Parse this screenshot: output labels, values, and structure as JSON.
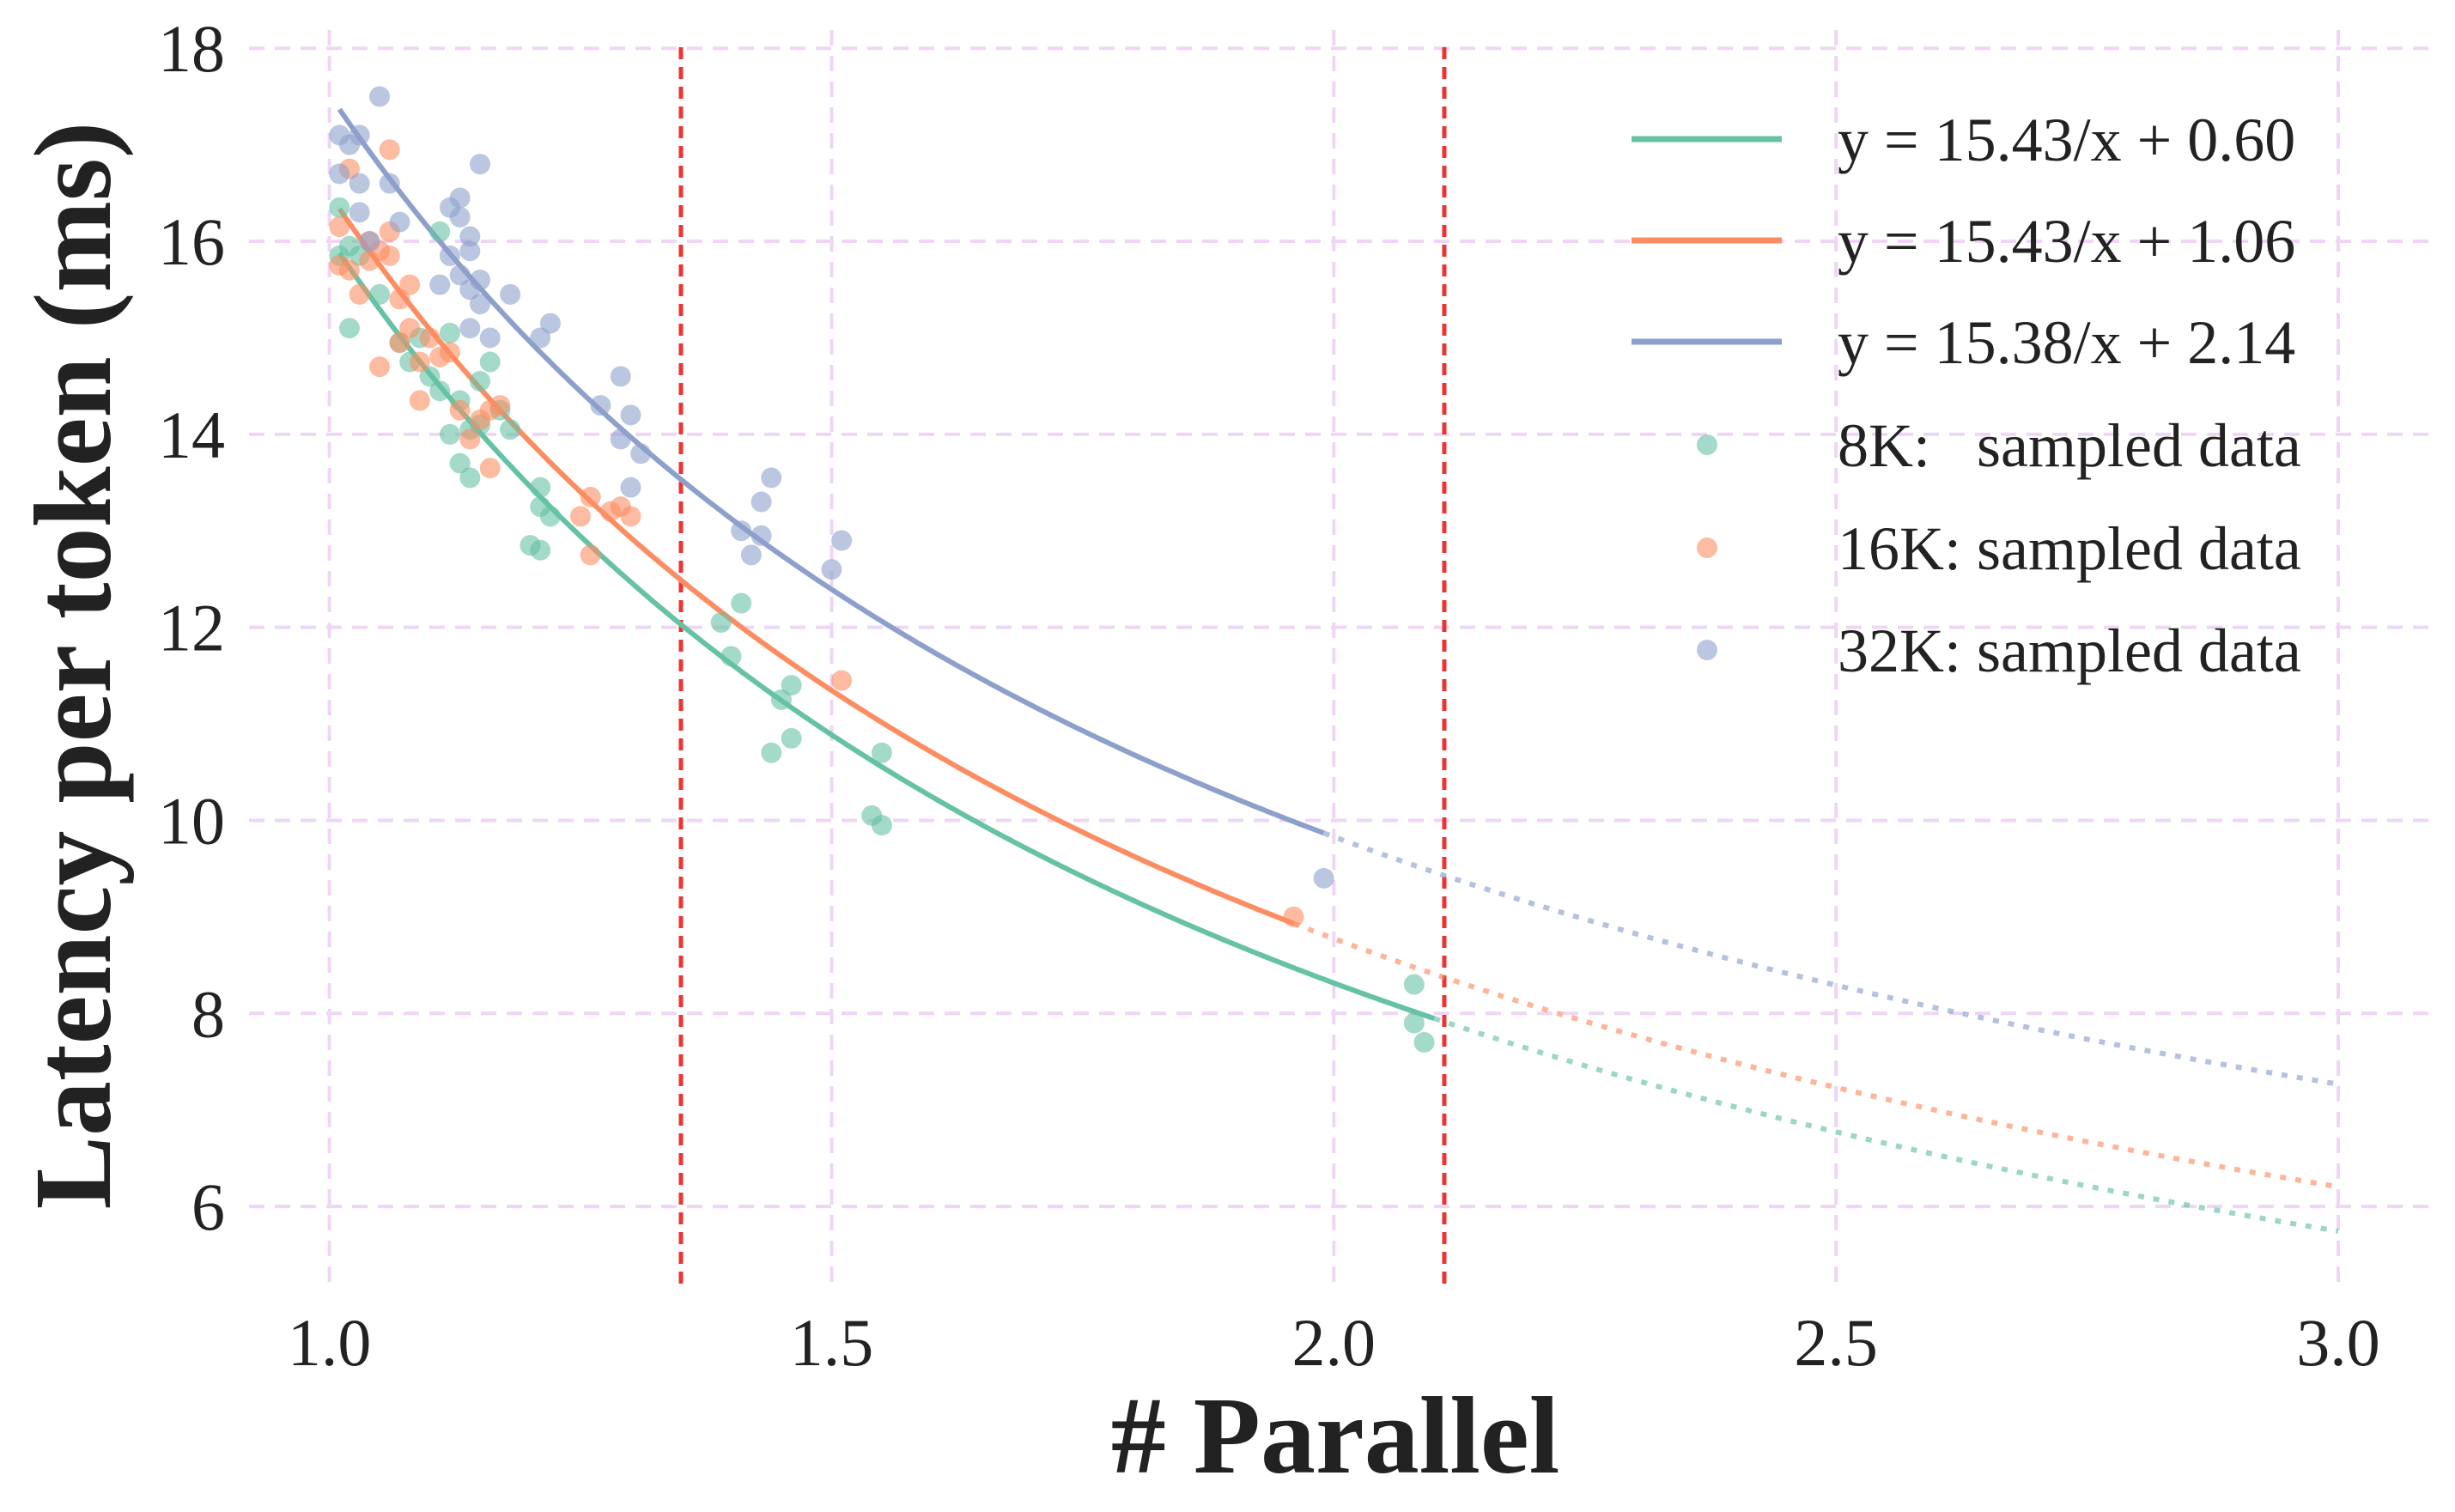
{
  "chart_data": {
    "type": "scatter",
    "xlabel": "# Parallel",
    "ylabel": "Latency per token (ms)",
    "xlim": [
      0.92,
      3.1
    ],
    "ylim": [
      5.2,
      18.1
    ],
    "xticks": [
      1.0,
      1.5,
      2.0,
      2.5,
      3.0
    ],
    "xtick_labels": [
      "1.0",
      "1.5",
      "2.0",
      "2.5",
      "3.0"
    ],
    "yticks": [
      6,
      8,
      10,
      12,
      14,
      16,
      18
    ],
    "ytick_labels": [
      "6",
      "8",
      "10",
      "12",
      "14",
      "16",
      "18"
    ],
    "grid": true,
    "legend_position": "top-right",
    "vlines": {
      "x": [
        1.35,
        2.11
      ],
      "color": "#ee3333"
    },
    "fits": [
      {
        "name": "y = 15.43/x + 0.60",
        "a": 15.43,
        "b": 0.6,
        "solid_range": [
          1.01,
          2.1
        ],
        "dotted_range": [
          2.1,
          3.0
        ],
        "color": "#66c2a5"
      },
      {
        "name": "y = 15.43/x + 1.06",
        "a": 15.43,
        "b": 1.06,
        "solid_range": [
          1.01,
          1.96
        ],
        "dotted_range": [
          1.96,
          3.0
        ],
        "color": "#fc8d62"
      },
      {
        "name": "y = 15.38/x + 2.14",
        "a": 15.38,
        "b": 2.14,
        "solid_range": [
          1.01,
          1.99
        ],
        "dotted_range": [
          1.99,
          3.0
        ],
        "color": "#8da0cb"
      }
    ],
    "series": [
      {
        "name": "8K:   sampled data",
        "color": "#66c2a5",
        "points": [
          [
            1.01,
            16.35
          ],
          [
            1.01,
            15.85
          ],
          [
            1.02,
            15.95
          ],
          [
            1.02,
            15.1
          ],
          [
            1.03,
            15.85
          ],
          [
            1.05,
            15.45
          ],
          [
            1.07,
            14.95
          ],
          [
            1.08,
            14.75
          ],
          [
            1.09,
            15.0
          ],
          [
            1.1,
            14.6
          ],
          [
            1.11,
            16.1
          ],
          [
            1.11,
            14.45
          ],
          [
            1.12,
            14.0
          ],
          [
            1.12,
            15.05
          ],
          [
            1.13,
            14.35
          ],
          [
            1.13,
            13.7
          ],
          [
            1.14,
            14.05
          ],
          [
            1.14,
            13.55
          ],
          [
            1.15,
            14.55
          ],
          [
            1.15,
            14.1
          ],
          [
            1.16,
            14.75
          ],
          [
            1.17,
            14.25
          ],
          [
            1.18,
            14.05
          ],
          [
            1.2,
            12.85
          ],
          [
            1.21,
            13.45
          ],
          [
            1.21,
            13.25
          ],
          [
            1.21,
            12.8
          ],
          [
            1.22,
            13.15
          ],
          [
            1.39,
            12.05
          ],
          [
            1.4,
            11.7
          ],
          [
            1.41,
            12.25
          ],
          [
            1.44,
            10.7
          ],
          [
            1.45,
            11.25
          ],
          [
            1.46,
            11.4
          ],
          [
            1.46,
            10.85
          ],
          [
            1.54,
            10.05
          ],
          [
            1.55,
            9.95
          ],
          [
            1.55,
            10.7
          ],
          [
            2.08,
            8.3
          ],
          [
            2.08,
            7.9
          ],
          [
            2.09,
            7.7
          ]
        ]
      },
      {
        "name": "16K: sampled data",
        "color": "#fc8d62",
        "points": [
          [
            1.01,
            15.75
          ],
          [
            1.01,
            16.15
          ],
          [
            1.02,
            15.7
          ],
          [
            1.02,
            16.75
          ],
          [
            1.03,
            15.45
          ],
          [
            1.04,
            16.0
          ],
          [
            1.04,
            15.8
          ],
          [
            1.05,
            15.9
          ],
          [
            1.05,
            14.7
          ],
          [
            1.06,
            16.1
          ],
          [
            1.06,
            15.85
          ],
          [
            1.06,
            16.95
          ],
          [
            1.07,
            15.4
          ],
          [
            1.07,
            14.95
          ],
          [
            1.08,
            15.1
          ],
          [
            1.08,
            15.55
          ],
          [
            1.09,
            14.75
          ],
          [
            1.09,
            14.35
          ],
          [
            1.1,
            15.0
          ],
          [
            1.11,
            14.8
          ],
          [
            1.12,
            14.85
          ],
          [
            1.13,
            14.25
          ],
          [
            1.14,
            13.95
          ],
          [
            1.15,
            14.15
          ],
          [
            1.16,
            13.65
          ],
          [
            1.16,
            14.25
          ],
          [
            1.17,
            14.3
          ],
          [
            1.25,
            13.15
          ],
          [
            1.26,
            12.75
          ],
          [
            1.26,
            13.35
          ],
          [
            1.28,
            13.2
          ],
          [
            1.29,
            13.25
          ],
          [
            1.3,
            13.15
          ],
          [
            1.51,
            11.45
          ],
          [
            1.96,
            9.0
          ]
        ]
      },
      {
        "name": "32K: sampled data",
        "color": "#8da0cb",
        "points": [
          [
            1.01,
            17.1
          ],
          [
            1.01,
            16.7
          ],
          [
            1.02,
            17.0
          ],
          [
            1.03,
            17.1
          ],
          [
            1.03,
            16.6
          ],
          [
            1.03,
            16.3
          ],
          [
            1.04,
            16.0
          ],
          [
            1.05,
            17.5
          ],
          [
            1.06,
            16.6
          ],
          [
            1.07,
            16.2
          ],
          [
            1.11,
            15.55
          ],
          [
            1.12,
            16.35
          ],
          [
            1.12,
            15.85
          ],
          [
            1.13,
            16.45
          ],
          [
            1.13,
            16.25
          ],
          [
            1.13,
            15.65
          ],
          [
            1.14,
            16.05
          ],
          [
            1.14,
            15.9
          ],
          [
            1.14,
            15.5
          ],
          [
            1.14,
            15.1
          ],
          [
            1.15,
            16.8
          ],
          [
            1.15,
            15.6
          ],
          [
            1.15,
            15.35
          ],
          [
            1.16,
            15.0
          ],
          [
            1.18,
            15.45
          ],
          [
            1.21,
            15.0
          ],
          [
            1.22,
            15.15
          ],
          [
            1.27,
            14.3
          ],
          [
            1.29,
            14.6
          ],
          [
            1.29,
            13.95
          ],
          [
            1.3,
            14.2
          ],
          [
            1.3,
            13.45
          ],
          [
            1.31,
            13.8
          ],
          [
            1.41,
            13.0
          ],
          [
            1.42,
            12.75
          ],
          [
            1.43,
            13.3
          ],
          [
            1.43,
            12.95
          ],
          [
            1.44,
            13.55
          ],
          [
            1.5,
            12.6
          ],
          [
            1.51,
            12.9
          ],
          [
            1.99,
            9.4
          ]
        ]
      }
    ]
  }
}
